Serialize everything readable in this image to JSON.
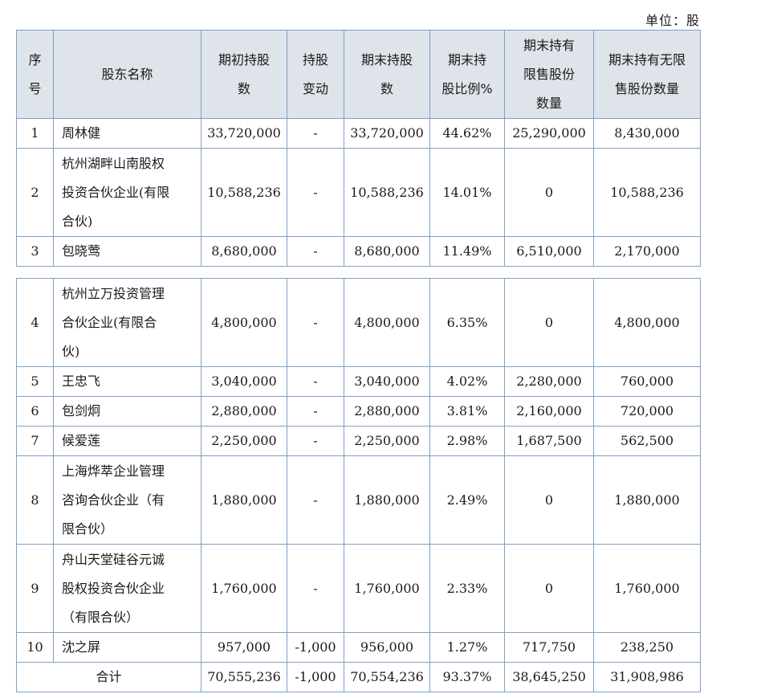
{
  "unit": "单位：股",
  "headers": [
    "序号",
    "股东名称",
    "期初持股数",
    "持股变动",
    "期末持股数",
    "期末持股比例%",
    "期末持有限售股份数量",
    "期末持有无限售股份数量"
  ],
  "header_lines": [
    [
      "序",
      "号"
    ],
    [
      "股东名称"
    ],
    [
      "期初持股",
      "数"
    ],
    [
      "持股",
      "变动"
    ],
    [
      "期末持股",
      "数"
    ],
    [
      "期末持",
      "股比例%"
    ],
    [
      "期末持有",
      "限售股份",
      "数量"
    ],
    [
      "期末持有无限",
      "售股份数量"
    ]
  ],
  "rows": [
    {
      "no": "1",
      "name_lines": [
        "周林健"
      ],
      "begin": "33,720,000",
      "change": "-",
      "end": "33,720,000",
      "ratio": "44.62%",
      "restricted": "25,290,000",
      "unrestricted": "8,430,000"
    },
    {
      "no": "2",
      "name_lines": [
        "杭州湖畔山南股权",
        "投资合伙企业(有限",
        "合伙)"
      ],
      "begin": "10,588,236",
      "change": "-",
      "end": "10,588,236",
      "ratio": "14.01%",
      "restricted": "0",
      "unrestricted": "10,588,236"
    },
    {
      "no": "3",
      "name_lines": [
        "包晓莺"
      ],
      "begin": "8,680,000",
      "change": "-",
      "end": "8,680,000",
      "ratio": "11.49%",
      "restricted": "6,510,000",
      "unrestricted": "2,170,000"
    },
    {
      "no": "4",
      "name_lines": [
        "杭州立万投资管理",
        "合伙企业(有限合",
        "伙)"
      ],
      "begin": "4,800,000",
      "change": "-",
      "end": "4,800,000",
      "ratio": "6.35%",
      "restricted": "0",
      "unrestricted": "4,800,000"
    },
    {
      "no": "5",
      "name_lines": [
        "王忠飞"
      ],
      "begin": "3,040,000",
      "change": "-",
      "end": "3,040,000",
      "ratio": "4.02%",
      "restricted": "2,280,000",
      "unrestricted": "760,000"
    },
    {
      "no": "6",
      "name_lines": [
        "包剑炯"
      ],
      "begin": "2,880,000",
      "change": "-",
      "end": "2,880,000",
      "ratio": "3.81%",
      "restricted": "2,160,000",
      "unrestricted": "720,000"
    },
    {
      "no": "7",
      "name_lines": [
        "候爱莲"
      ],
      "begin": "2,250,000",
      "change": "-",
      "end": "2,250,000",
      "ratio": "2.98%",
      "restricted": "1,687,500",
      "unrestricted": "562,500"
    },
    {
      "no": "8",
      "name_lines": [
        "上海烨萃企业管理",
        "咨询合伙企业（有",
        "限合伙）"
      ],
      "begin": "1,880,000",
      "change": "-",
      "end": "1,880,000",
      "ratio": "2.49%",
      "restricted": "0",
      "unrestricted": "1,880,000"
    },
    {
      "no": "9",
      "name_lines": [
        "舟山天堂硅谷元诚",
        "股权投资合伙企业",
        "（有限合伙）"
      ],
      "begin": "1,760,000",
      "change": "-",
      "end": "1,760,000",
      "ratio": "2.33%",
      "restricted": "0",
      "unrestricted": "1,760,000"
    },
    {
      "no": "10",
      "name_lines": [
        "沈之屏"
      ],
      "begin": "957,000",
      "change": "-1,000",
      "end": "956,000",
      "ratio": "1.27%",
      "restricted": "717,750",
      "unrestricted": "238,250"
    }
  ],
  "total": {
    "label": "合计",
    "begin": "70,555,236",
    "change": "-1,000",
    "end": "70,554,236",
    "ratio": "93.37%",
    "restricted": "38,645,250",
    "unrestricted": "31,908,986"
  }
}
